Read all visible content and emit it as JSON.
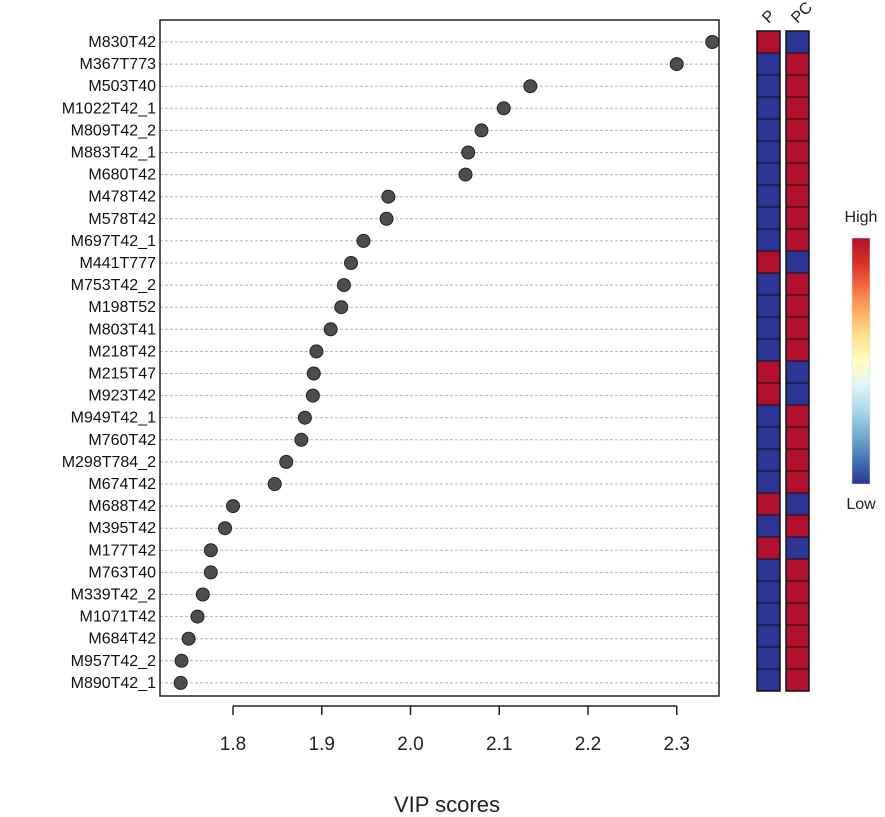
{
  "chart_data": {
    "type": "scatter",
    "title": "",
    "xlabel": "VIP scores",
    "ylabel": "",
    "xlim": [
      1.73,
      2.36
    ],
    "xticks": [
      "1.8",
      "1.9",
      "2.0",
      "2.1",
      "2.2",
      "2.3"
    ],
    "grid": "horizontal dashed",
    "point_color": "#4d4d4d",
    "categories": [
      "M830T42",
      "M367T773",
      "M503T40",
      "M1022T42_1",
      "M809T42_2",
      "M883T42_1",
      "M680T42",
      "M478T42",
      "M578T42",
      "M697T42_1",
      "M441T777",
      "M753T42_2",
      "M198T52",
      "M803T41",
      "M218T42",
      "M215T47",
      "M923T42",
      "M949T42_1",
      "M760T42",
      "M298T784_2",
      "M674T42",
      "M688T42",
      "M395T42",
      "M177T42",
      "M763T40",
      "M339T42_2",
      "M1071T42",
      "M684T42",
      "M957T42_2",
      "M890T42_1"
    ],
    "values": [
      2.34,
      2.3,
      2.135,
      2.105,
      2.08,
      2.065,
      2.062,
      1.975,
      1.973,
      1.947,
      1.933,
      1.925,
      1.922,
      1.91,
      1.894,
      1.891,
      1.89,
      1.881,
      1.877,
      1.86,
      1.847,
      1.8,
      1.791,
      1.775,
      1.775,
      1.766,
      1.76,
      1.75,
      1.742,
      1.741
    ],
    "heatmap": {
      "columns": [
        "P",
        "PC"
      ],
      "cells": [
        [
          "High",
          "Low"
        ],
        [
          "Low",
          "High"
        ],
        [
          "Low",
          "High"
        ],
        [
          "Low",
          "High"
        ],
        [
          "Low",
          "High"
        ],
        [
          "Low",
          "High"
        ],
        [
          "Low",
          "High"
        ],
        [
          "Low",
          "High"
        ],
        [
          "Low",
          "High"
        ],
        [
          "Low",
          "High"
        ],
        [
          "High",
          "Low"
        ],
        [
          "Low",
          "High"
        ],
        [
          "Low",
          "High"
        ],
        [
          "Low",
          "High"
        ],
        [
          "Low",
          "High"
        ],
        [
          "High",
          "Low"
        ],
        [
          "High",
          "Low"
        ],
        [
          "Low",
          "High"
        ],
        [
          "Low",
          "High"
        ],
        [
          "Low",
          "High"
        ],
        [
          "Low",
          "High"
        ],
        [
          "High",
          "Low"
        ],
        [
          "Low",
          "High"
        ],
        [
          "High",
          "Low"
        ],
        [
          "Low",
          "High"
        ],
        [
          "Low",
          "High"
        ],
        [
          "Low",
          "High"
        ],
        [
          "Low",
          "High"
        ],
        [
          "Low",
          "High"
        ],
        [
          "Low",
          "High"
        ]
      ],
      "colors": {
        "High": "#b2102f",
        "Low": "#2c3494"
      }
    },
    "legend": {
      "placement": "right",
      "high_label": "High",
      "low_label": "Low",
      "gradient": [
        "#b2102f",
        "#d73027",
        "#f46d43",
        "#fdae61",
        "#fee090",
        "#ffffbf",
        "#e0f3f8",
        "#abd9e9",
        "#74add1",
        "#4575b4",
        "#2c3494"
      ]
    }
  }
}
